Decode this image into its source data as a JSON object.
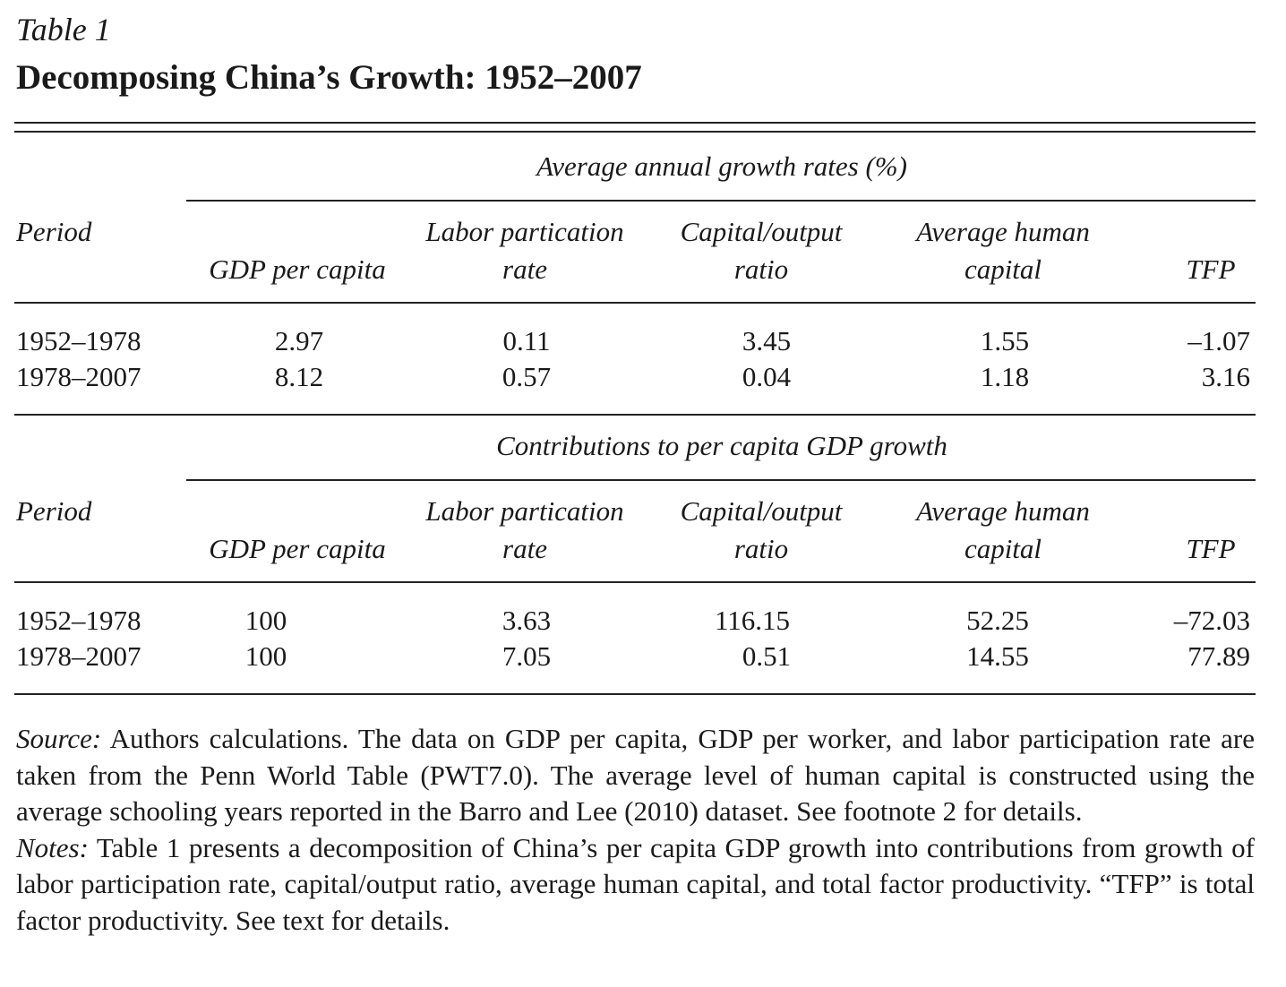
{
  "table_label": "Table 1",
  "title": "Decomposing China’s Growth: 1952–2007",
  "sections": [
    {
      "heading": "Average annual growth rates (%)",
      "columns": {
        "period": "Period",
        "gdp": "GDP per capita",
        "labor_1": "Labor partication",
        "labor_2": "rate",
        "capital_1": "Capital/output",
        "capital_2": "ratio",
        "human_1": "Average human",
        "human_2": "capital",
        "tfp": "TFP"
      },
      "rows": [
        {
          "period": "1952–1978",
          "gdp": "2.97",
          "labor": "0.11",
          "capital": "3.45",
          "human": "1.55",
          "tfp": "–1.07"
        },
        {
          "period": "1978–2007",
          "gdp": "8.12",
          "labor": "0.57",
          "capital": "0.04",
          "human": "1.18",
          "tfp": "3.16"
        }
      ]
    },
    {
      "heading": "Contributions to per capita GDP growth",
      "columns": {
        "period": "Period",
        "gdp": "GDP per capita",
        "labor_1": "Labor partication",
        "labor_2": "rate",
        "capital_1": "Capital/output",
        "capital_2": "ratio",
        "human_1": "Average human",
        "human_2": "capital",
        "tfp": "TFP"
      },
      "rows": [
        {
          "period": "1952–1978",
          "gdp": "100",
          "labor": "3.63",
          "capital": "116.15",
          "human": "52.25",
          "tfp": "–72.03"
        },
        {
          "period": "1978–2007",
          "gdp": "100",
          "labor": "7.05",
          "capital": "0.51",
          "human": "14.55",
          "tfp": "77.89"
        }
      ]
    }
  ],
  "source": {
    "label": "Source:",
    "text": " Authors calculations. The data on GDP per capita, GDP per worker, and labor participation rate are taken from the Penn World Table (PWT7.0). The average level of human capital is constructed using the average schooling years reported in the Barro and Lee (2010) dataset. See footnote 2 for details."
  },
  "notes": {
    "label": "Notes:",
    "text": " Table 1 presents a decomposition of China’s per capita GDP growth into contributions from growth of labor participation rate, capital/output ratio, average human capital, and total factor productivity. “TFP” is total factor productivity. See text for details."
  }
}
